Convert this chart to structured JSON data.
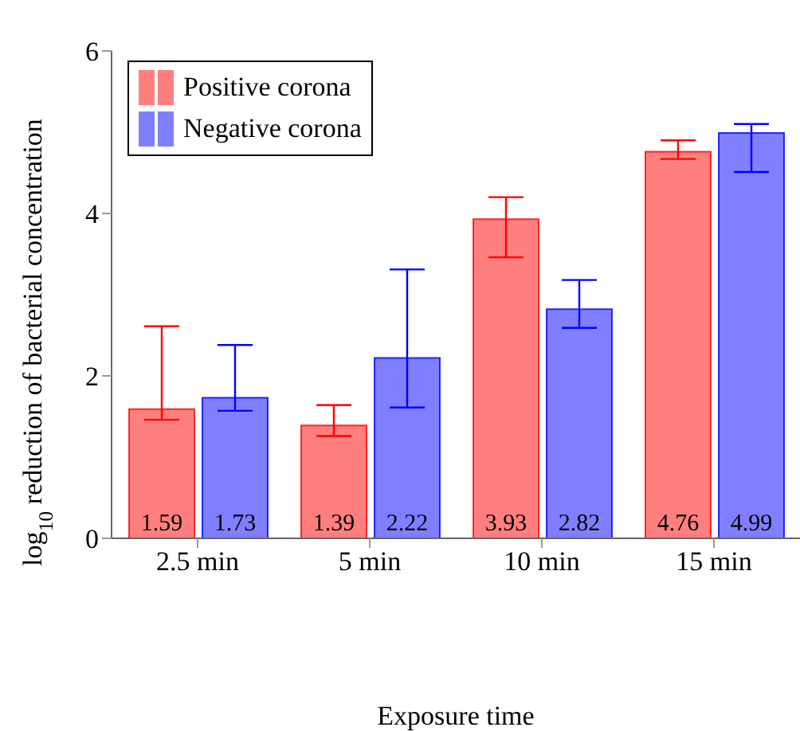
{
  "chart_data": {
    "type": "bar",
    "xlabel": "Exposure time",
    "ylabel": "log$_{10}$ reduction of bacterial concentration",
    "categories": [
      "2.5 min",
      "5 min",
      "10 min",
      "15 min"
    ],
    "series": [
      {
        "name": "Positive corona",
        "color": "#ff0000",
        "values": [
          1.59,
          1.39,
          3.93,
          4.76
        ],
        "errors": [
          [
            1.46,
            2.61
          ],
          [
            1.26,
            1.64
          ],
          [
            3.46,
            4.2
          ],
          [
            4.67,
            4.9
          ]
        ]
      },
      {
        "name": "Negative corona",
        "color": "#0000ff",
        "values": [
          1.73,
          2.22,
          2.82,
          4.99
        ],
        "errors": [
          [
            1.57,
            2.38
          ],
          [
            1.61,
            3.31
          ],
          [
            2.59,
            3.18
          ],
          [
            4.51,
            5.1
          ]
        ]
      }
    ],
    "ylim": [
      0,
      6
    ],
    "yticks": [
      0,
      2,
      4,
      6
    ],
    "grid": false,
    "legend": "top left",
    "data_labels": true
  }
}
